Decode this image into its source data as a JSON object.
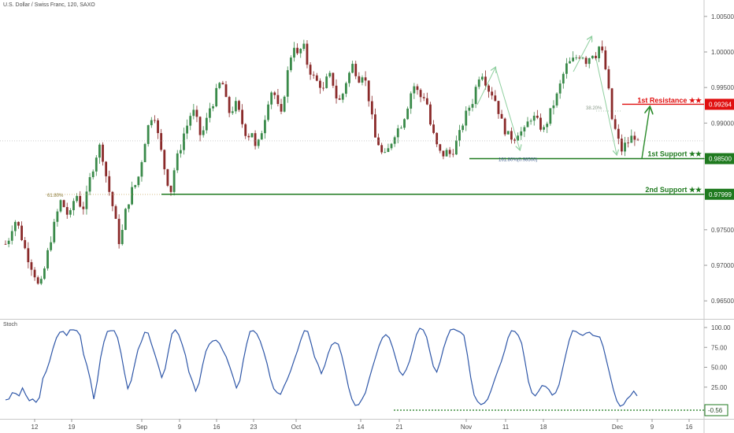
{
  "title": "U.S. Dollar / Swiss Franc, 120, SAXO",
  "chart_data": [
    {
      "type": "candlestick",
      "title": "U.S. Dollar / Swiss Franc, 120, SAXO",
      "ylim": [
        0.9625,
        1.0075
      ],
      "y_ticks": [
        "0.96500",
        "0.97000",
        "0.97500",
        "0.98000",
        "0.98500",
        "0.99000",
        "0.99500",
        "1.00000",
        "1.00500"
      ],
      "x_ticks": [
        "12",
        "19",
        "Sep",
        "9",
        "16",
        "23",
        "Oct",
        "14",
        "21",
        "Nov",
        "11",
        "18",
        "Dec",
        "9",
        "16"
      ],
      "price_path": [
        [
          0.973,
          0.974
        ],
        [
          0.9765,
          0.9755
        ],
        [
          0.9735,
          0.9715
        ],
        [
          0.97,
          0.9685
        ],
        [
          0.9665,
          0.969
        ],
        [
          0.972,
          0.9745
        ],
        [
          0.977,
          0.979
        ],
        [
          0.978,
          0.9765
        ],
        [
          0.979,
          0.98
        ],
        [
          0.9775,
          0.9795
        ],
        [
          0.9825,
          0.9845
        ],
        [
          0.987,
          0.985
        ],
        [
          0.9815,
          0.979
        ],
        [
          0.976,
          0.9725
        ],
        [
          0.977,
          0.979
        ],
        [
          0.981,
          0.9815
        ],
        [
          0.9845,
          0.988
        ],
        [
          0.9905,
          0.9915
        ],
        [
          0.988,
          0.985
        ],
        [
          0.982,
          0.9805
        ],
        [
          0.9845,
          0.986
        ],
        [
          0.9885,
          0.99
        ],
        [
          0.992,
          0.9905
        ],
        [
          0.988,
          0.9895
        ],
        [
          0.992,
          0.993
        ],
        [
          0.995,
          0.996
        ],
        [
          0.993,
          0.991
        ],
        [
          0.993,
          0.9915
        ],
        [
          0.9895,
          0.988
        ],
        [
          0.989,
          0.986
        ],
        [
          0.988,
          0.9905
        ],
        [
          0.9935,
          0.995
        ],
        [
          0.9925,
          0.991
        ],
        [
          0.9955,
          0.999
        ],
        [
          1.001,
          0.999
        ],
        [
          1.0015,
          0.9985
        ],
        [
          0.997,
          0.996
        ],
        [
          0.9955,
          0.9945
        ],
        [
          0.997,
          0.996
        ],
        [
          0.9935,
          0.993
        ],
        [
          0.9955,
          0.997
        ],
        [
          0.9985,
          0.996
        ],
        [
          0.997,
          0.9955
        ],
        [
          0.992,
          0.988
        ],
        [
          0.987,
          0.985
        ],
        [
          0.986,
          0.9875
        ],
        [
          0.989,
          0.9895
        ],
        [
          0.991,
          0.993
        ],
        [
          0.9955,
          0.9945
        ],
        [
          0.9935,
          0.994
        ],
        [
          0.99,
          0.988
        ],
        [
          0.986,
          0.9855
        ],
        [
          0.986,
          0.9855
        ],
        [
          0.987,
          0.9885
        ],
        [
          0.9905,
          0.992
        ],
        [
          0.993,
          0.9955
        ],
        [
          0.9975,
          0.996
        ],
        [
          0.9945,
          0.994
        ],
        [
          0.992,
          0.99
        ],
        [
          0.9885,
          0.988
        ],
        [
          0.988,
          0.989
        ],
        [
          0.9885,
          0.99
        ],
        [
          0.991,
          0.9905
        ],
        [
          0.9895,
          0.989
        ],
        [
          0.991,
          0.9925
        ],
        [
          0.994,
          0.996
        ],
        [
          0.998,
          0.9985
        ],
        [
          0.999,
          0.9995
        ],
        [
          0.9995,
          0.9985
        ],
        [
          1.0,
          0.9995
        ],
        [
          1.001,
          0.999
        ],
        [
          0.995,
          0.99
        ],
        [
          0.9885,
          0.986
        ],
        [
          0.987,
          0.9875
        ],
        [
          0.9885,
          0.987
        ]
      ],
      "annotations": [
        {
          "text": "61.80%",
          "color": "#8a7a3a"
        },
        {
          "text": "38.20%",
          "color": "#8a9a8a"
        },
        {
          "text": "161.80%(0.98500)",
          "color": "#3a5a8a"
        }
      ],
      "levels": [
        {
          "name": "1st Resistance ★★",
          "value": 0.99264,
          "value_label": "0.99264",
          "color": "#e01010"
        },
        {
          "name": "1st Support ★★",
          "value": 0.985,
          "value_label": "0.98500",
          "color": "#1f7a1f"
        },
        {
          "name": "2nd Support ★★",
          "value": 0.97999,
          "value_label": "0.97999",
          "color": "#1f7a1f"
        }
      ],
      "current_price": 0.9875
    },
    {
      "type": "line",
      "title": "Stoch",
      "ylim": [
        -6,
        105
      ],
      "y_ticks": [
        "100.00",
        "75.00",
        "50.00",
        "25.00"
      ],
      "values": [
        9,
        10,
        18,
        17,
        14,
        24,
        15,
        8,
        10,
        6,
        12,
        36,
        45,
        58,
        74,
        87,
        94,
        95,
        90,
        97,
        97,
        96,
        90,
        66,
        52,
        34,
        10,
        32,
        62,
        82,
        95,
        96,
        96,
        87,
        68,
        44,
        23,
        33,
        53,
        72,
        82,
        94,
        93,
        79,
        66,
        52,
        37,
        48,
        71,
        92,
        97,
        91,
        79,
        65,
        44,
        33,
        20,
        30,
        52,
        70,
        79,
        83,
        84,
        80,
        71,
        63,
        51,
        38,
        24,
        33,
        58,
        79,
        95,
        96,
        92,
        83,
        70,
        55,
        36,
        23,
        18,
        16,
        26,
        35,
        46,
        59,
        71,
        85,
        96,
        95,
        80,
        63,
        54,
        42,
        52,
        67,
        78,
        81,
        79,
        65,
        46,
        25,
        10,
        2,
        3,
        10,
        18,
        34,
        49,
        63,
        77,
        87,
        91,
        87,
        75,
        60,
        45,
        40,
        47,
        58,
        74,
        91,
        99,
        97,
        88,
        69,
        51,
        44,
        57,
        74,
        87,
        97,
        98,
        96,
        94,
        90,
        66,
        37,
        15,
        7,
        3,
        5,
        10,
        21,
        34,
        46,
        57,
        71,
        87,
        96,
        95,
        90,
        80,
        57,
        32,
        18,
        14,
        20,
        27,
        26,
        22,
        15,
        18,
        28,
        47,
        66,
        84,
        96,
        95,
        92,
        90,
        93,
        94,
        90,
        89,
        88,
        76,
        58,
        40,
        22,
        8,
        1,
        3,
        10,
        14,
        20,
        14
      ],
      "levels": [
        {
          "name": "stoch-low",
          "value": -0.56,
          "value_label": "-0.56",
          "color": "#1f7a1f"
        }
      ]
    }
  ]
}
